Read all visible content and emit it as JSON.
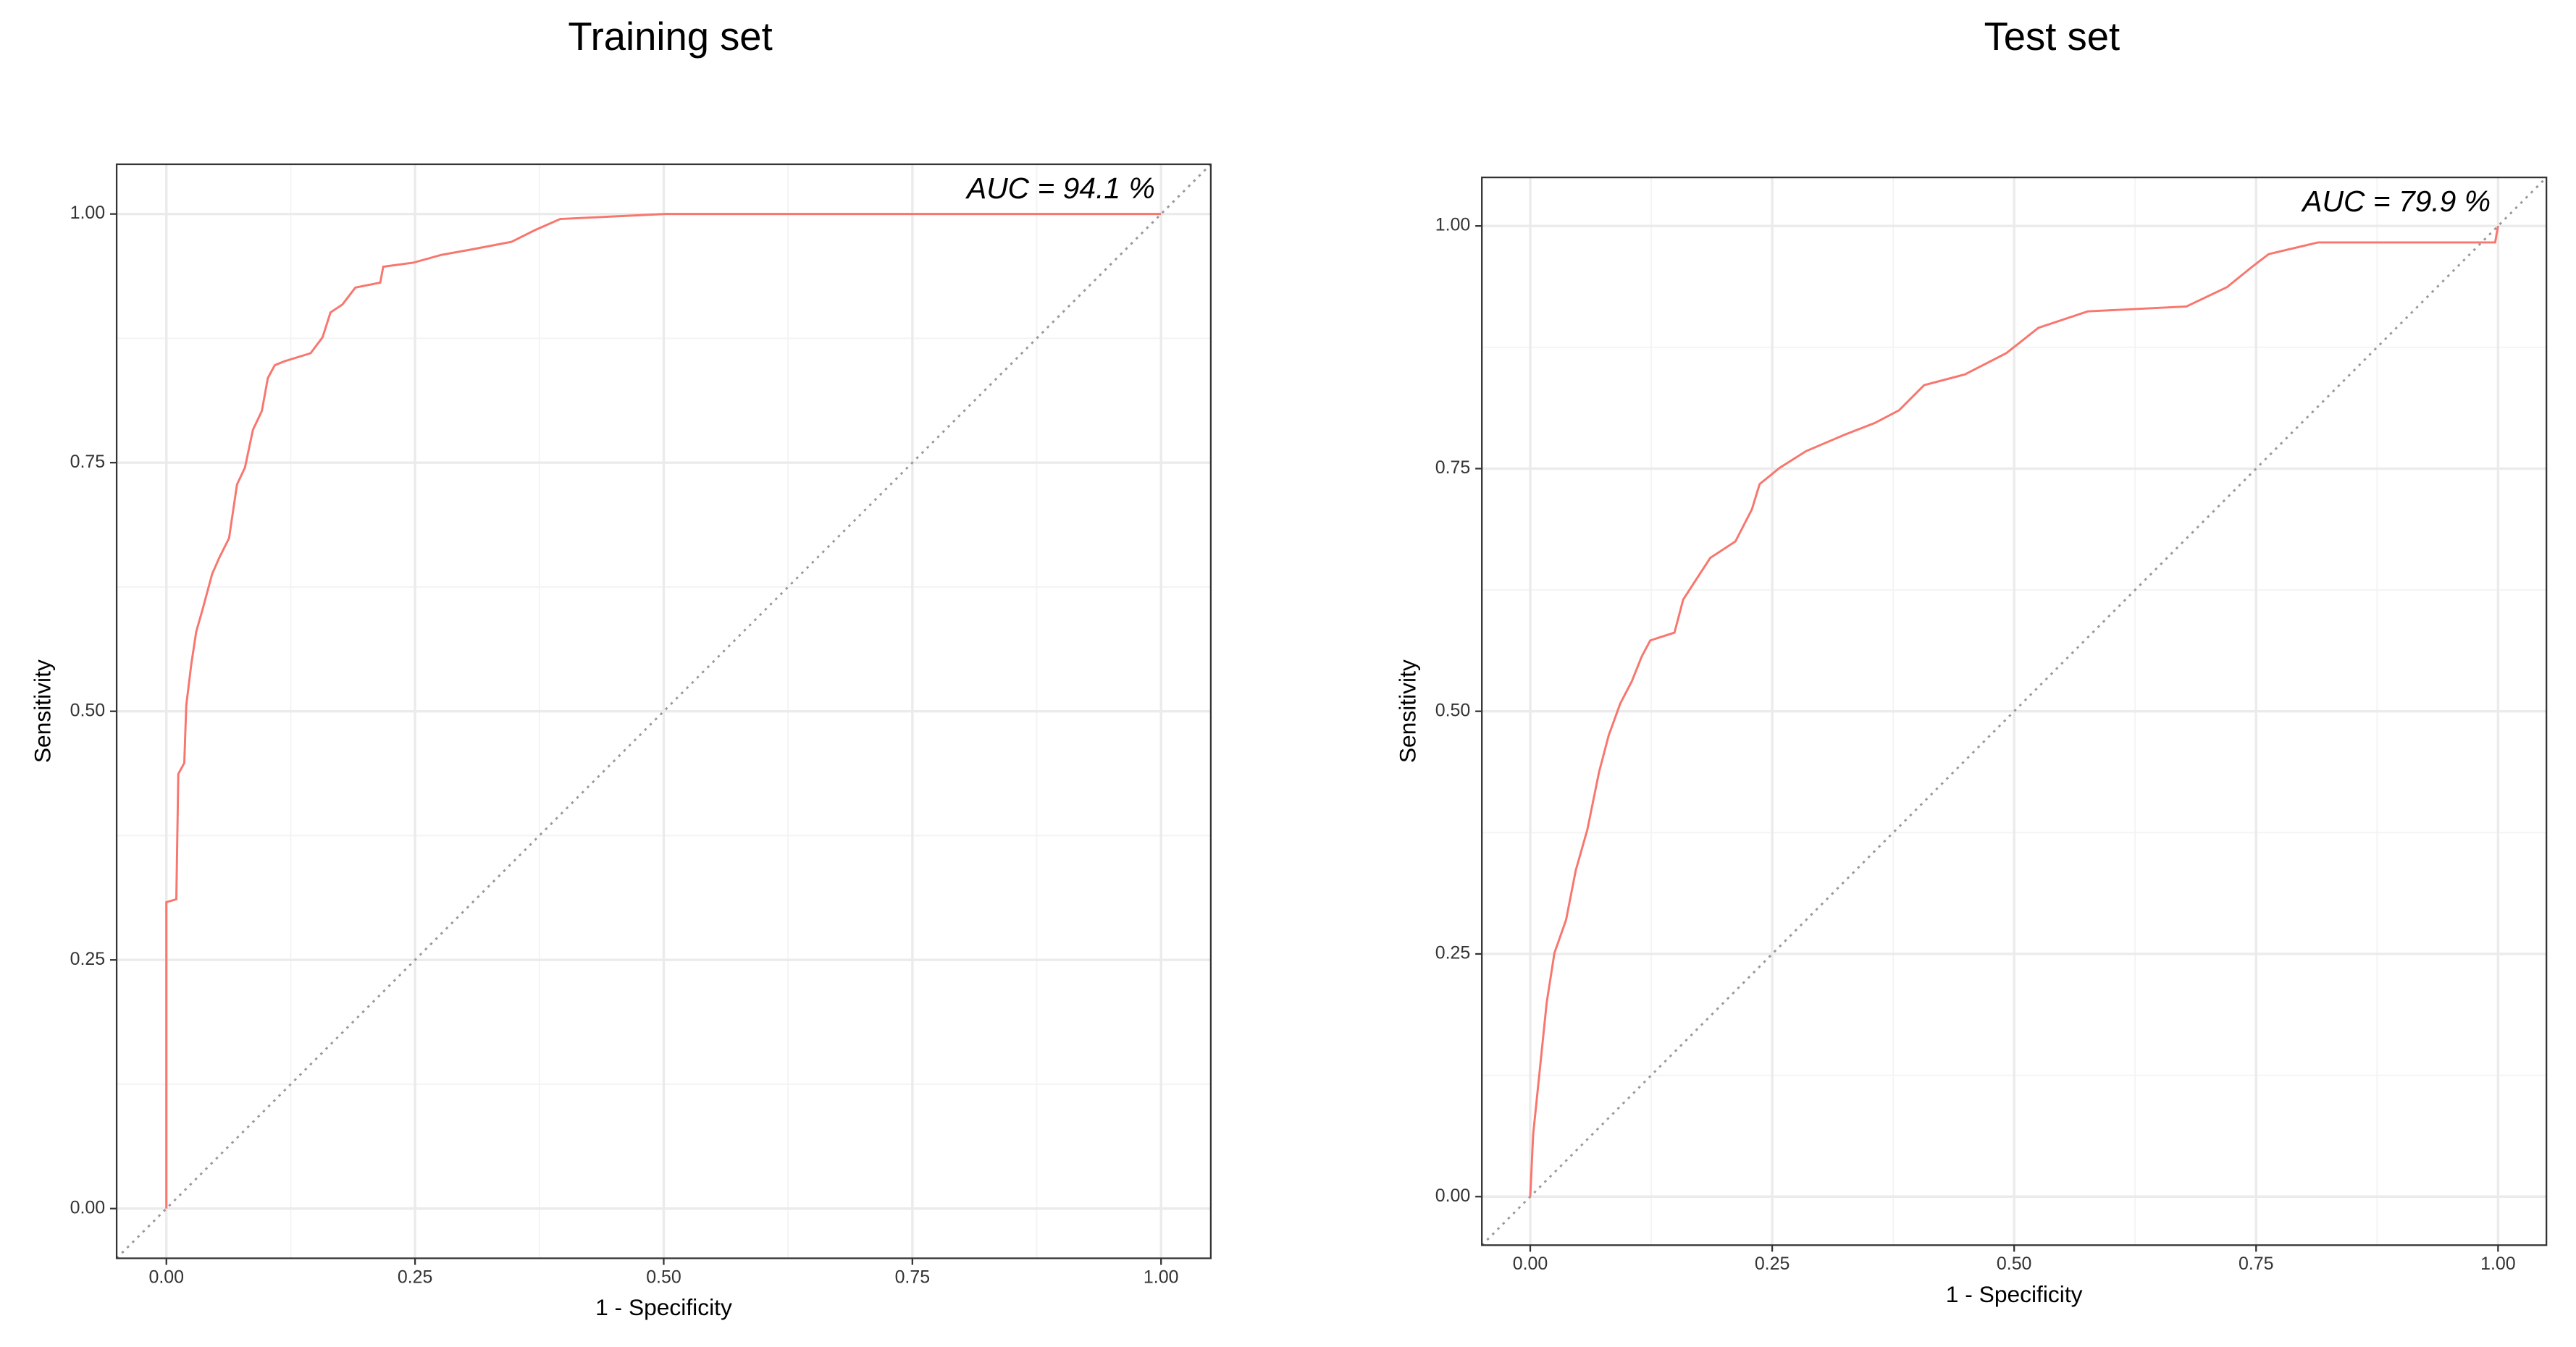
{
  "chart_data": [
    {
      "type": "line",
      "title": "Training set",
      "x_label": "1 - Specificity",
      "y_label": "Sensitivity",
      "annotation": "AUC = 94.1 %",
      "color": "#f8766d",
      "grid": true,
      "x": [
        0,
        0,
        0.01,
        0.012,
        0.018,
        0.02,
        0.025,
        0.03,
        0.036,
        0.046,
        0.053,
        0.063,
        0.071,
        0.079,
        0.087,
        0.096,
        0.102,
        0.109,
        0.119,
        0.145,
        0.157,
        0.165,
        0.177,
        0.19,
        0.215,
        0.218,
        0.248,
        0.277,
        0.305,
        0.347,
        0.371,
        0.396,
        0.502,
        1
      ],
      "values": [
        0,
        0.308,
        0.311,
        0.437,
        0.448,
        0.506,
        0.547,
        0.58,
        0.601,
        0.638,
        0.654,
        0.674,
        0.728,
        0.745,
        0.783,
        0.802,
        0.835,
        0.848,
        0.852,
        0.86,
        0.876,
        0.901,
        0.909,
        0.926,
        0.931,
        0.947,
        0.951,
        0.959,
        0.964,
        0.972,
        0.984,
        0.995,
        1,
        1
      ],
      "xlim": [
        -0.05,
        1.05
      ],
      "ylim": [
        -0.05,
        1.05
      ],
      "xticks": [
        {
          "value": 0,
          "label": "0.00"
        },
        {
          "value": 0.25,
          "label": "0.25"
        },
        {
          "value": 0.5,
          "label": "0.50"
        },
        {
          "value": 0.75,
          "label": "0.75"
        },
        {
          "value": 1,
          "label": "1.00"
        }
      ],
      "yticks": [
        {
          "value": 0,
          "label": "0.00"
        },
        {
          "value": 0.25,
          "label": "0.25"
        },
        {
          "value": 0.5,
          "label": "0.50"
        },
        {
          "value": 0.75,
          "label": "0.75"
        },
        {
          "value": 1,
          "label": "1.00"
        }
      ],
      "minor_ticks": [
        0.125,
        0.375,
        0.625,
        0.875
      ]
    },
    {
      "type": "line",
      "title": "Test set",
      "x_label": "1 - Specificity",
      "y_label": "Sensitivity",
      "annotation": "AUC = 79.9 %",
      "color": "#f8766d",
      "grid": true,
      "x": [
        0,
        0.003,
        0.01,
        0.017,
        0.025,
        0.037,
        0.047,
        0.059,
        0.071,
        0.081,
        0.093,
        0.105,
        0.115,
        0.124,
        0.149,
        0.158,
        0.169,
        0.186,
        0.212,
        0.229,
        0.237,
        0.258,
        0.285,
        0.325,
        0.356,
        0.381,
        0.407,
        0.449,
        0.492,
        0.525,
        0.576,
        0.678,
        0.72,
        0.746,
        0.763,
        0.814,
        0.997,
        1
      ],
      "values": [
        0,
        0.064,
        0.132,
        0.2,
        0.251,
        0.285,
        0.336,
        0.378,
        0.437,
        0.475,
        0.508,
        0.531,
        0.556,
        0.573,
        0.581,
        0.615,
        0.632,
        0.658,
        0.675,
        0.708,
        0.734,
        0.751,
        0.768,
        0.785,
        0.797,
        0.81,
        0.836,
        0.847,
        0.869,
        0.895,
        0.912,
        0.917,
        0.937,
        0.958,
        0.971,
        0.983,
        0.983,
        1
      ],
      "xlim": [
        -0.05,
        1.05
      ],
      "ylim": [
        -0.05,
        1.05
      ],
      "xticks": [
        {
          "value": 0,
          "label": "0.00"
        },
        {
          "value": 0.25,
          "label": "0.25"
        },
        {
          "value": 0.5,
          "label": "0.50"
        },
        {
          "value": 0.75,
          "label": "0.75"
        },
        {
          "value": 1,
          "label": "1.00"
        }
      ],
      "yticks": [
        {
          "value": 0,
          "label": "0.00"
        },
        {
          "value": 0.25,
          "label": "0.25"
        },
        {
          "value": 0.5,
          "label": "0.50"
        },
        {
          "value": 0.75,
          "label": "0.75"
        },
        {
          "value": 1,
          "label": "1.00"
        }
      ],
      "minor_ticks": [
        0.125,
        0.375,
        0.625,
        0.875
      ]
    }
  ]
}
